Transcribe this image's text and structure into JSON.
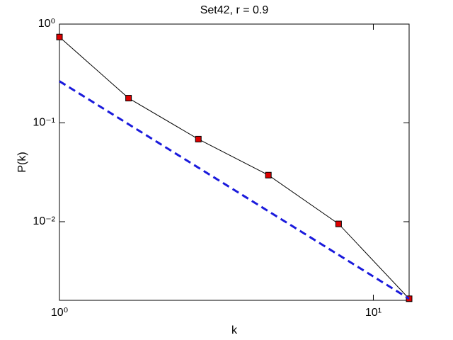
{
  "chart_data": {
    "type": "line",
    "title": "Set42, r = 0.9",
    "xlabel": "k",
    "ylabel": "P(k)",
    "xscale": "log",
    "yscale": "log",
    "xlim": [
      1,
      13
    ],
    "ylim": [
      0.0016,
      1
    ],
    "xticks": [
      {
        "value": 1,
        "label": "10⁰"
      },
      {
        "value": 10,
        "label": "10¹"
      }
    ],
    "yticks": [
      {
        "value": 0.01,
        "label": "10⁻²"
      },
      {
        "value": 0.1,
        "label": "10⁻¹"
      },
      {
        "value": 1,
        "label": "10⁰"
      }
    ],
    "series": [
      {
        "color": "#000000",
        "marker_color": "#dd0000",
        "style": "solid",
        "marker": "square",
        "x": [
          1,
          1.66,
          2.77,
          4.63,
          7.75,
          13.0
        ],
        "values": [
          0.74,
          0.178,
          0.0685,
          0.0296,
          0.0095,
          0.00166
        ]
      },
      {
        "color": "#1a1adc",
        "style": "dashed",
        "marker": "none",
        "x": [
          1,
          13.0
        ],
        "values": [
          0.264,
          0.00166
        ]
      }
    ]
  }
}
